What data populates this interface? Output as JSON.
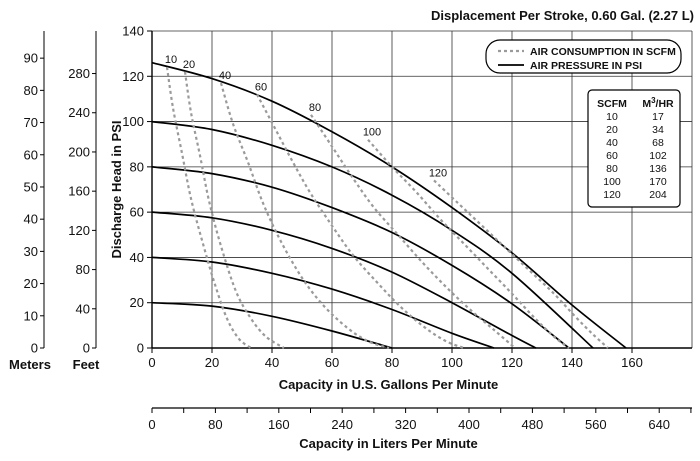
{
  "chart_data": {
    "type": "line",
    "title": "Displacement Per Stroke, 0.60 Gal. (2.27 L)",
    "xlabel": "Capacity in U.S. Gallons Per Minute",
    "ylabel": "Discharge Head in PSI",
    "x_secondary_label": "Capacity in Liters Per Minute",
    "xlim": [
      0,
      180
    ],
    "ylim": [
      0,
      140
    ],
    "x_ticks": [
      0,
      20,
      40,
      60,
      80,
      100,
      120,
      140,
      160
    ],
    "y_ticks": [
      0,
      20,
      40,
      60,
      80,
      100,
      120,
      140
    ],
    "x_secondary_ticks": [
      0,
      80,
      160,
      240,
      320,
      400,
      480,
      560,
      640
    ],
    "feet_label": "Feet",
    "feet_ticks": [
      0,
      40,
      80,
      120,
      160,
      200,
      240,
      280
    ],
    "meters_label": "Meters",
    "meters_ticks": [
      0,
      10,
      20,
      30,
      40,
      50,
      60,
      70,
      80,
      90
    ],
    "grid": true,
    "legend": {
      "position": "top-right",
      "air_consumption": "AIR CONSUMPTION IN SCFM",
      "air_pressure": "AIR PRESSURE IN PSI"
    },
    "pressure_series": [
      {
        "name": "20",
        "x": [
          0,
          20,
          40,
          60,
          80
        ],
        "y": [
          20,
          18.5,
          14,
          7.5,
          0
        ]
      },
      {
        "name": "40",
        "x": [
          0,
          20,
          40,
          60,
          80,
          100,
          114
        ],
        "y": [
          40,
          38,
          33,
          26,
          17,
          6.5,
          0
        ]
      },
      {
        "name": "60",
        "x": [
          0,
          20,
          40,
          60,
          80,
          100,
          120,
          128
        ],
        "y": [
          60,
          57.5,
          52,
          44,
          33.5,
          20,
          5.5,
          0
        ]
      },
      {
        "name": "80",
        "x": [
          0,
          20,
          40,
          60,
          80,
          100,
          120,
          139
        ],
        "y": [
          80,
          77,
          71,
          62,
          51,
          36.5,
          19.5,
          0
        ]
      },
      {
        "name": "100",
        "x": [
          0,
          20,
          40,
          60,
          80,
          100,
          120,
          147
        ],
        "y": [
          100,
          96.5,
          89.5,
          80,
          67.5,
          52,
          33,
          0
        ]
      },
      {
        "name": "120",
        "x": [
          0,
          20,
          40,
          60,
          80,
          100,
          120,
          140,
          158
        ],
        "y": [
          126,
          119,
          109,
          95.5,
          80,
          62,
          42,
          19,
          0
        ]
      }
    ],
    "air_series": [
      {
        "name": "10",
        "label": "10",
        "x": [
          5,
          7,
          10,
          13,
          17,
          21,
          25,
          29,
          33
        ],
        "y": [
          124,
          106,
          86,
          66,
          46,
          28,
          13,
          4,
          0
        ]
      },
      {
        "name": "20",
        "label": "20",
        "x": [
          11,
          13,
          16,
          19,
          23,
          28,
          33,
          38,
          44
        ],
        "y": [
          122,
          104,
          85,
          65,
          45,
          25,
          13,
          5,
          0
        ]
      },
      {
        "name": "40",
        "label": "40",
        "x": [
          23,
          27,
          32,
          37,
          43,
          50,
          57,
          65,
          72,
          79
        ],
        "y": [
          117,
          99,
          82,
          64,
          47,
          31,
          19,
          9,
          3,
          0
        ]
      },
      {
        "name": "60",
        "label": "60",
        "x": [
          35,
          41,
          47,
          53,
          60,
          67,
          75,
          83,
          91,
          98,
          104
        ],
        "y": [
          112,
          97,
          82,
          68,
          54,
          41,
          29,
          18,
          9,
          3,
          0
        ]
      },
      {
        "name": "80",
        "label": "80",
        "x": [
          53,
          60,
          67,
          74,
          82,
          90,
          98,
          106,
          114,
          121
        ],
        "y": [
          103,
          89,
          75,
          62,
          50,
          38,
          27,
          17,
          8,
          0
        ]
      },
      {
        "name": "100",
        "label": "100",
        "x": [
          72,
          80,
          88,
          96,
          104,
          112,
          120,
          127,
          134,
          139
        ],
        "y": [
          92,
          80,
          69,
          57,
          46,
          35,
          24,
          14,
          5,
          0
        ]
      },
      {
        "name": "120",
        "label": "120",
        "x": [
          94,
          102,
          110,
          118,
          126,
          134,
          141,
          147,
          152
        ],
        "y": [
          74,
          64,
          54,
          44,
          34,
          24,
          14,
          6,
          0
        ]
      }
    ],
    "pressure_labels": [
      "20",
      "40",
      "60",
      "80",
      "100",
      "120"
    ],
    "conversion_table": {
      "headers": [
        "SCFM",
        "M3/HR"
      ],
      "rows": [
        [
          "10",
          "17"
        ],
        [
          "20",
          "34"
        ],
        [
          "40",
          "68"
        ],
        [
          "60",
          "102"
        ],
        [
          "80",
          "136"
        ],
        [
          "100",
          "170"
        ],
        [
          "120",
          "204"
        ]
      ]
    }
  }
}
